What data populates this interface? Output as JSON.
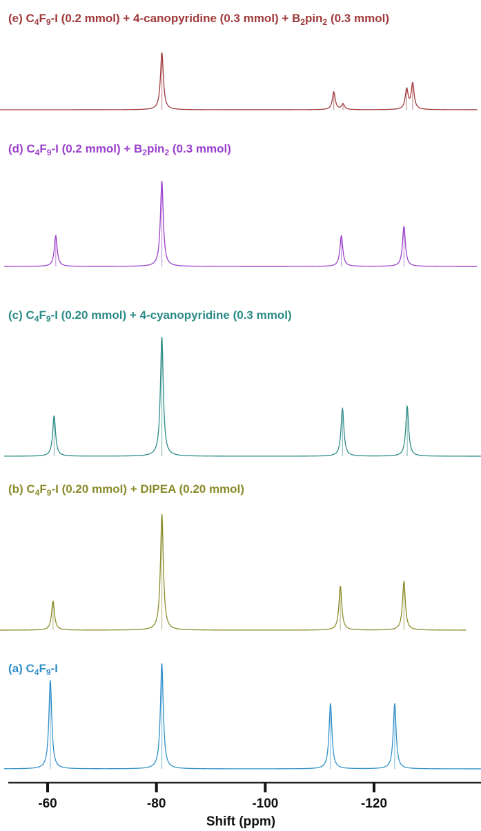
{
  "chart_data": {
    "type": "line",
    "xlabel": "Shift (ppm)",
    "xlim": [
      -52,
      -140
    ],
    "x_ticks": [
      "-60",
      "-80",
      "-100",
      "-120"
    ],
    "x_tick_values": [
      -60,
      -80,
      -100,
      -120
    ],
    "grid": false,
    "series": [
      {
        "key": "e",
        "name": "(e) C4F9-I (0.2 mmol) + 4-canopyridine (0.3 mmol) + B2pin2 (0.3 mmol)",
        "label_parts": [
          "(e) C",
          "4",
          "F",
          "9",
          "-I (0.2 mmol) + 4-canopyridine (0.3 mmol) + B",
          "2",
          "pin",
          "2",
          " (0.3 mmol)"
        ],
        "color": "#a0393b",
        "x_range": [
          -50,
          -139
        ],
        "peaks": [
          {
            "x": -81.0,
            "height": 1.0
          },
          {
            "x": -112.6,
            "height": 0.31
          },
          {
            "x": -114.3,
            "height": 0.1
          },
          {
            "x": -126.0,
            "height": 0.35
          },
          {
            "x": -127.1,
            "height": 0.45
          }
        ]
      },
      {
        "key": "d",
        "name": "(d) C4F9-I (0.2 mmol) + B2pin2 (0.3 mmol)",
        "label_parts": [
          "(d) C",
          "4",
          "F",
          "9",
          "-I (0.2 mmol) + B",
          "2",
          "pin",
          "2",
          " (0.3 mmol)"
        ],
        "color": "#9b3fcc",
        "x_range": [
          -52,
          -139
        ],
        "peaks": [
          {
            "x": -61.5,
            "height": 0.36
          },
          {
            "x": -81.0,
            "height": 1.0
          },
          {
            "x": -114.0,
            "height": 0.36
          },
          {
            "x": -125.5,
            "height": 0.47
          }
        ]
      },
      {
        "key": "c",
        "name": "(c) C4F9-I (0.20 mmol) + 4-cyanopyridine (0.3 mmol)",
        "label_parts": [
          "(c) C",
          "4",
          "F",
          "9",
          "-I (0.20 mmol) + 4-cyanopyridine (0.3 mmol)"
        ],
        "color": "#2a8a85",
        "x_range": [
          -52,
          -140
        ],
        "peaks": [
          {
            "x": -61.2,
            "height": 0.34
          },
          {
            "x": -81.0,
            "height": 1.0
          },
          {
            "x": -114.2,
            "height": 0.4
          },
          {
            "x": -126.1,
            "height": 0.42
          }
        ]
      },
      {
        "key": "b",
        "name": "(b) C4F9-I (0.20 mmol) + DIPEA (0.20 mmol)",
        "label_parts": [
          "(b) C",
          "4",
          "F",
          "9",
          "-I (0.20 mmol) + DIPEA (0.20 mmol)"
        ],
        "color": "#8a8a2a",
        "x_range": [
          -51,
          -137
        ],
        "peaks": [
          {
            "x": -61.0,
            "height": 0.25
          },
          {
            "x": -81.0,
            "height": 1.0
          },
          {
            "x": -113.8,
            "height": 0.38
          },
          {
            "x": -125.5,
            "height": 0.42
          }
        ]
      },
      {
        "key": "a",
        "name": "(a) C4F9-I",
        "label_parts": [
          "(a) C",
          "4",
          "F",
          "9",
          "-I"
        ],
        "color": "#2f8fc8",
        "x_range": [
          -52,
          -140
        ],
        "peaks": [
          {
            "x": -60.5,
            "height": 0.84
          },
          {
            "x": -81.0,
            "height": 1.0
          },
          {
            "x": -112.0,
            "height": 0.62
          },
          {
            "x": -123.8,
            "height": 0.62
          }
        ]
      }
    ]
  }
}
